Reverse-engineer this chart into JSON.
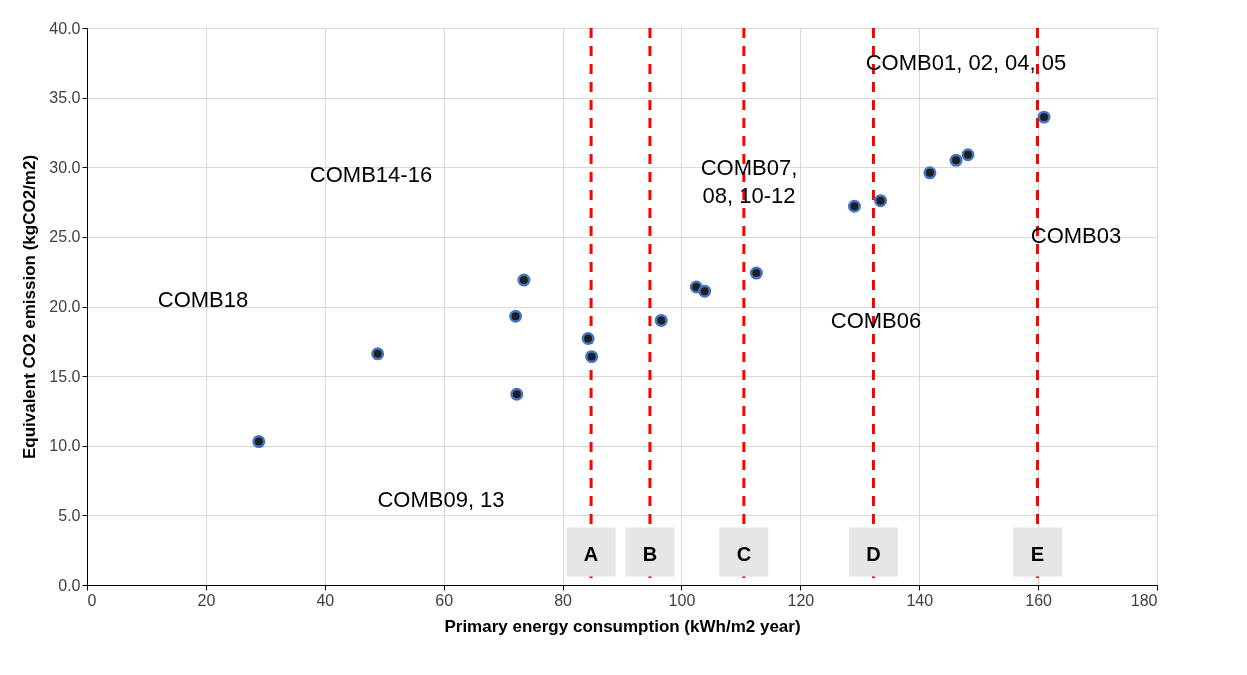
{
  "chart_data": {
    "type": "scatter",
    "xlabel": "Primary energy consumption (kWh/m2 year)",
    "ylabel": "Equivalent CO2 emission (kgCO2/m2)",
    "series": [
      {
        "color": "#1f1f1f",
        "x": [
          28.9,
          48.9,
          73.5,
          72.1,
          72.3,
          84.3,
          84.9,
          96.6,
          102.5,
          103.9,
          112.6,
          129.1,
          133.5,
          141.8,
          146.2,
          148.2,
          161.0
        ],
        "values": [
          10.3,
          16.6,
          21.9,
          19.3,
          13.7,
          17.7,
          16.4,
          19.0,
          21.4,
          21.1,
          22.4,
          27.2,
          27.6,
          29.6,
          30.5,
          30.9,
          33.6
        ]
      }
    ],
    "marker": "circle",
    "xlim": [
      0,
      180
    ],
    "xticks": [
      0,
      20,
      40,
      60,
      80,
      100,
      120,
      140,
      160,
      180
    ],
    "ylim": [
      0,
      40
    ],
    "yticks": [
      {
        "value": 0,
        "label": "0.0"
      },
      {
        "value": 5,
        "label": "5.0"
      },
      {
        "value": 10,
        "label": "10.0"
      },
      {
        "value": 15,
        "label": "15.0"
      },
      {
        "value": 20,
        "label": "20.0"
      },
      {
        "value": 25,
        "label": "25.0"
      },
      {
        "value": 30,
        "label": "30.0"
      },
      {
        "value": 35,
        "label": "35.0"
      },
      {
        "value": 40,
        "label": "40.0"
      }
    ],
    "grid": true,
    "ref_lines": [
      {
        "axis": "x",
        "value": 84.8,
        "label": "A",
        "color": "#ff0000",
        "line_style": "dashed"
      },
      {
        "axis": "x",
        "value": 94.7,
        "label": "B",
        "color": "#ff0000",
        "line_style": "dashed"
      },
      {
        "axis": "x",
        "value": 110.5,
        "label": "C",
        "color": "#ff0000",
        "line_style": "dashed"
      },
      {
        "axis": "x",
        "value": 132.3,
        "label": "D",
        "color": "#ff0000",
        "line_style": "dashed"
      },
      {
        "axis": "x",
        "value": 159.9,
        "label": "E",
        "color": "#ff0000",
        "line_style": "dashed"
      }
    ],
    "annotations": [
      "COMB18",
      "COMB14-16",
      "COMB07,\n08, 10-12",
      "COMB09, 13",
      "COMB06",
      "COMB01, 02, 04, 05",
      "COMB03"
    ]
  }
}
